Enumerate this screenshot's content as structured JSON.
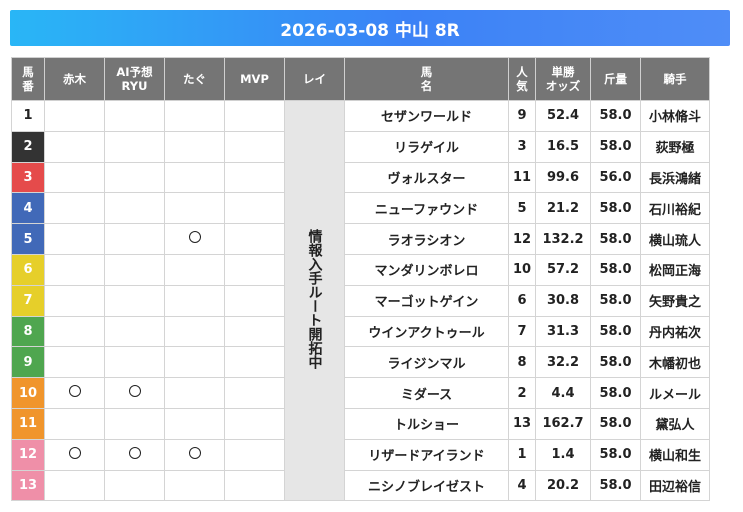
{
  "title": "2026-03-08 中山 8R",
  "headers": {
    "umaban": [
      "馬",
      "番"
    ],
    "akagi": "赤木",
    "ai": [
      "AI予想",
      "RYU"
    ],
    "tagu": "たぐ",
    "mvp": "MVP",
    "rei": "レイ",
    "uma": [
      "馬",
      "名"
    ],
    "ninki": [
      "人",
      "気"
    ],
    "odds": [
      "単勝",
      "オッズ"
    ],
    "kinryo": "斤量",
    "kishu": "騎手"
  },
  "rei_note": "情報入手ルート開拓中",
  "mark_symbol": "○",
  "frame_colors": {
    "1": {
      "bg": "#ffffff",
      "fg": "#222222"
    },
    "2": {
      "bg": "#333333",
      "fg": "#ffffff"
    },
    "3": {
      "bg": "#e54b4b",
      "fg": "#ffffff"
    },
    "4": {
      "bg": "#4169b8",
      "fg": "#ffffff"
    },
    "5": {
      "bg": "#e6cf2a",
      "fg": "#ffffff"
    },
    "6": {
      "bg": "#4fa64f",
      "fg": "#ffffff"
    },
    "7": {
      "bg": "#f0952c",
      "fg": "#ffffff"
    },
    "8": {
      "bg": "#ef8fa8",
      "fg": "#ffffff"
    }
  },
  "horses": [
    {
      "no": "1",
      "frame": "1",
      "akagi": false,
      "ai": false,
      "tagu": false,
      "mvp": false,
      "name": "セザンワールド",
      "ninki": "9",
      "odds": "52.4",
      "kinryo": "58.0",
      "jockey": "小林脩斗"
    },
    {
      "no": "2",
      "frame": "2",
      "akagi": false,
      "ai": false,
      "tagu": false,
      "mvp": false,
      "name": "リラゲイル",
      "ninki": "3",
      "odds": "16.5",
      "kinryo": "58.0",
      "jockey": "荻野極"
    },
    {
      "no": "3",
      "frame": "3",
      "akagi": false,
      "ai": false,
      "tagu": false,
      "mvp": false,
      "name": "ヴォルスター",
      "ninki": "11",
      "odds": "99.6",
      "kinryo": "56.0",
      "jockey": "長浜鴻緒"
    },
    {
      "no": "4",
      "frame": "4",
      "akagi": false,
      "ai": false,
      "tagu": false,
      "mvp": false,
      "name": "ニューファウンド",
      "ninki": "5",
      "odds": "21.2",
      "kinryo": "58.0",
      "jockey": "石川裕紀"
    },
    {
      "no": "5",
      "frame": "4",
      "akagi": false,
      "ai": false,
      "tagu": true,
      "mvp": false,
      "name": "ラオラシオン",
      "ninki": "12",
      "odds": "132.2",
      "kinryo": "58.0",
      "jockey": "横山琉人"
    },
    {
      "no": "6",
      "frame": "5",
      "akagi": false,
      "ai": false,
      "tagu": false,
      "mvp": false,
      "name": "マンダリンボレロ",
      "ninki": "10",
      "odds": "57.2",
      "kinryo": "58.0",
      "jockey": "松岡正海"
    },
    {
      "no": "7",
      "frame": "5",
      "akagi": false,
      "ai": false,
      "tagu": false,
      "mvp": false,
      "name": "マーゴットゲイン",
      "ninki": "6",
      "odds": "30.8",
      "kinryo": "58.0",
      "jockey": "矢野貴之"
    },
    {
      "no": "8",
      "frame": "6",
      "akagi": false,
      "ai": false,
      "tagu": false,
      "mvp": false,
      "name": "ウインアクトゥール",
      "ninki": "7",
      "odds": "31.3",
      "kinryo": "58.0",
      "jockey": "丹内祐次"
    },
    {
      "no": "9",
      "frame": "6",
      "akagi": false,
      "ai": false,
      "tagu": false,
      "mvp": false,
      "name": "ライジンマル",
      "ninki": "8",
      "odds": "32.2",
      "kinryo": "58.0",
      "jockey": "木幡初也"
    },
    {
      "no": "10",
      "frame": "7",
      "akagi": true,
      "ai": true,
      "tagu": false,
      "mvp": false,
      "name": "ミダース",
      "ninki": "2",
      "odds": "4.4",
      "kinryo": "58.0",
      "jockey": "ルメール"
    },
    {
      "no": "11",
      "frame": "7",
      "akagi": false,
      "ai": false,
      "tagu": false,
      "mvp": false,
      "name": "トルショー",
      "ninki": "13",
      "odds": "162.7",
      "kinryo": "58.0",
      "jockey": "黛弘人"
    },
    {
      "no": "12",
      "frame": "8",
      "akagi": true,
      "ai": true,
      "tagu": true,
      "mvp": false,
      "name": "リザードアイランド",
      "ninki": "1",
      "odds": "1.4",
      "kinryo": "58.0",
      "jockey": "横山和生"
    },
    {
      "no": "13",
      "frame": "8",
      "akagi": false,
      "ai": false,
      "tagu": false,
      "mvp": false,
      "name": "ニシノブレイゼスト",
      "ninki": "4",
      "odds": "20.2",
      "kinryo": "58.0",
      "jockey": "田辺裕信"
    }
  ]
}
